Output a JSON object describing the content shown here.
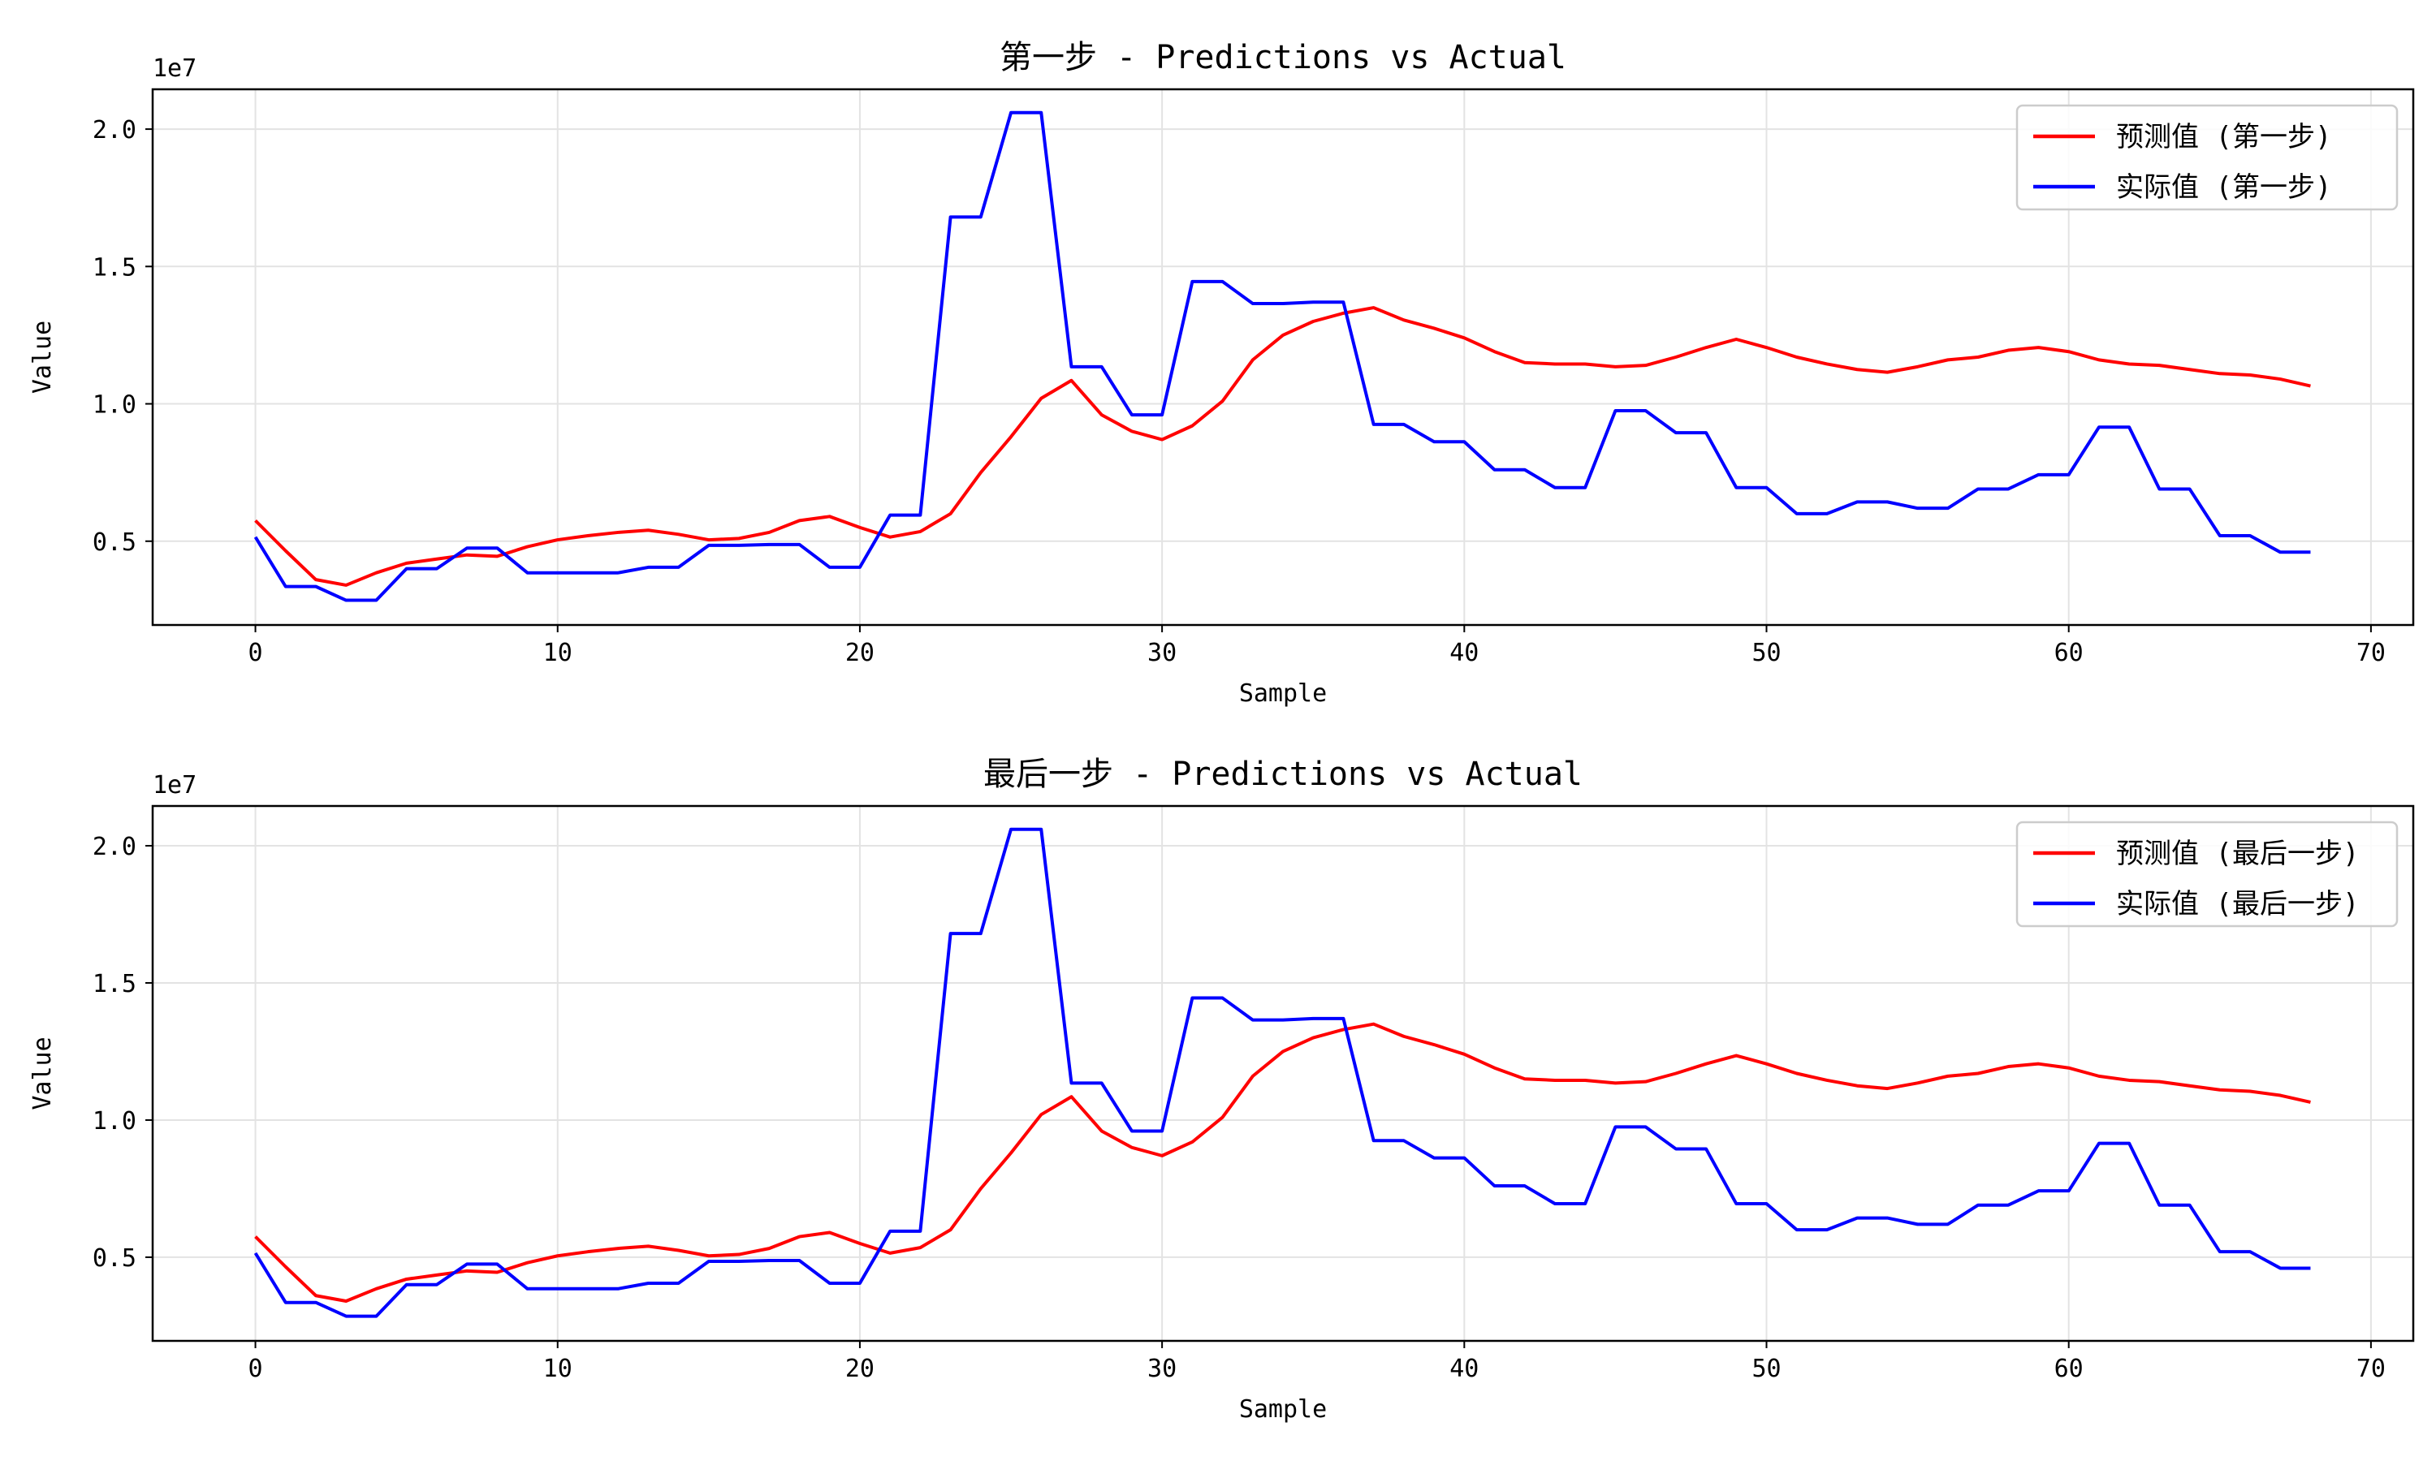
{
  "chart_data": [
    {
      "type": "line",
      "title": "第一步 - Predictions vs Actual",
      "xlabel": "Sample",
      "ylabel": "Value",
      "offset_label": "1e7",
      "xlim": [
        -3.4,
        71.4
      ],
      "ylim": [
        0.195,
        2.145
      ],
      "x_ticks": [
        0,
        10,
        20,
        30,
        40,
        50,
        60,
        70
      ],
      "x_tick_labels": [
        "0",
        "10",
        "20",
        "30",
        "40",
        "50",
        "60",
        "70"
      ],
      "y_ticks": [
        0.5,
        1.0,
        1.5,
        2.0
      ],
      "y_tick_labels": [
        "0.5",
        "1.0",
        "1.5",
        "2.0"
      ],
      "grid": true,
      "legend_position": "upper right",
      "series": [
        {
          "name": "预测值 (第一步)",
          "color": "#ff0000",
          "values": [
            0.575,
            0.465,
            0.36,
            0.34,
            0.385,
            0.42,
            0.435,
            0.45,
            0.445,
            0.48,
            0.505,
            0.52,
            0.532,
            0.54,
            0.525,
            0.505,
            0.51,
            0.532,
            0.575,
            0.59,
            0.55,
            0.515,
            0.535,
            0.6,
            0.75,
            0.88,
            1.02,
            1.085,
            0.96,
            0.9,
            0.87,
            0.92,
            1.01,
            1.16,
            1.25,
            1.3,
            1.33,
            1.35,
            1.305,
            1.275,
            1.24,
            1.19,
            1.15,
            1.145,
            1.145,
            1.135,
            1.14,
            1.17,
            1.205,
            1.235,
            1.205,
            1.17,
            1.145,
            1.125,
            1.115,
            1.135,
            1.16,
            1.17,
            1.195,
            1.205,
            1.19,
            1.16,
            1.145,
            1.14,
            1.125,
            1.11,
            1.105,
            1.09,
            1.065
          ]
        },
        {
          "name": "实际值 (第一步)",
          "color": "#0000ff",
          "values": [
            0.515,
            0.335,
            0.335,
            0.285,
            0.285,
            0.4,
            0.4,
            0.475,
            0.475,
            0.385,
            0.385,
            0.385,
            0.385,
            0.405,
            0.405,
            0.485,
            0.485,
            0.488,
            0.488,
            0.405,
            0.405,
            0.595,
            0.595,
            1.68,
            1.68,
            2.06,
            2.06,
            1.135,
            1.135,
            0.96,
            0.96,
            1.445,
            1.445,
            1.365,
            1.365,
            1.37,
            1.37,
            0.925,
            0.925,
            0.862,
            0.862,
            0.76,
            0.76,
            0.695,
            0.695,
            0.975,
            0.975,
            0.895,
            0.895,
            0.695,
            0.695,
            0.6,
            0.6,
            0.643,
            0.643,
            0.62,
            0.62,
            0.69,
            0.69,
            0.742,
            0.742,
            0.915,
            0.915,
            0.69,
            0.69,
            0.52,
            0.52,
            0.46,
            0.46
          ]
        }
      ]
    },
    {
      "type": "line",
      "title": "最后一步 - Predictions vs Actual",
      "xlabel": "Sample",
      "ylabel": "Value",
      "offset_label": "1e7",
      "xlim": [
        -3.4,
        71.4
      ],
      "ylim": [
        0.195,
        2.145
      ],
      "x_ticks": [
        0,
        10,
        20,
        30,
        40,
        50,
        60,
        70
      ],
      "x_tick_labels": [
        "0",
        "10",
        "20",
        "30",
        "40",
        "50",
        "60",
        "70"
      ],
      "y_ticks": [
        0.5,
        1.0,
        1.5,
        2.0
      ],
      "y_tick_labels": [
        "0.5",
        "1.0",
        "1.5",
        "2.0"
      ],
      "grid": true,
      "legend_position": "upper right",
      "series": [
        {
          "name": "预测值 (最后一步)",
          "color": "#ff0000",
          "values": [
            0.575,
            0.465,
            0.36,
            0.34,
            0.385,
            0.42,
            0.435,
            0.45,
            0.445,
            0.48,
            0.505,
            0.52,
            0.532,
            0.54,
            0.525,
            0.505,
            0.51,
            0.532,
            0.575,
            0.59,
            0.55,
            0.515,
            0.535,
            0.6,
            0.75,
            0.88,
            1.02,
            1.085,
            0.96,
            0.9,
            0.87,
            0.92,
            1.01,
            1.16,
            1.25,
            1.3,
            1.33,
            1.35,
            1.305,
            1.275,
            1.24,
            1.19,
            1.15,
            1.145,
            1.145,
            1.135,
            1.14,
            1.17,
            1.205,
            1.235,
            1.205,
            1.17,
            1.145,
            1.125,
            1.115,
            1.135,
            1.16,
            1.17,
            1.195,
            1.205,
            1.19,
            1.16,
            1.145,
            1.14,
            1.125,
            1.11,
            1.105,
            1.09,
            1.065
          ]
        },
        {
          "name": "实际值 (最后一步)",
          "color": "#0000ff",
          "values": [
            0.515,
            0.335,
            0.335,
            0.285,
            0.285,
            0.4,
            0.4,
            0.475,
            0.475,
            0.385,
            0.385,
            0.385,
            0.385,
            0.405,
            0.405,
            0.485,
            0.485,
            0.488,
            0.488,
            0.405,
            0.405,
            0.595,
            0.595,
            1.68,
            1.68,
            2.06,
            2.06,
            1.135,
            1.135,
            0.96,
            0.96,
            1.445,
            1.445,
            1.365,
            1.365,
            1.37,
            1.37,
            0.925,
            0.925,
            0.862,
            0.862,
            0.76,
            0.76,
            0.695,
            0.695,
            0.975,
            0.975,
            0.895,
            0.895,
            0.695,
            0.695,
            0.6,
            0.6,
            0.643,
            0.643,
            0.62,
            0.62,
            0.69,
            0.69,
            0.742,
            0.742,
            0.915,
            0.915,
            0.69,
            0.69,
            0.52,
            0.52,
            0.46,
            0.46
          ]
        }
      ]
    }
  ]
}
